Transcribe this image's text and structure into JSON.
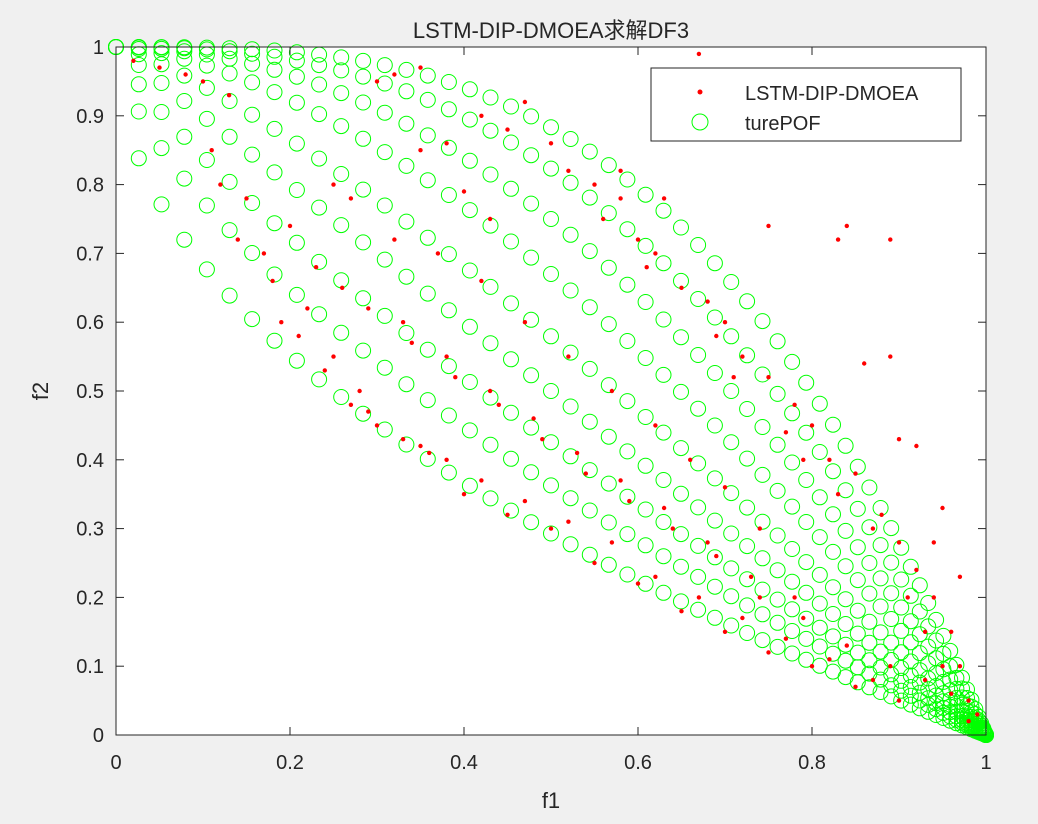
{
  "chart_data": {
    "type": "scatter",
    "title": "LSTM-DIP-DMOEA求解DF3",
    "xlabel": "f1",
    "ylabel": "f2",
    "xlim": [
      0,
      1
    ],
    "ylim": [
      0,
      1
    ],
    "xticks": [
      "0",
      "0.2",
      "0.4",
      "0.6",
      "0.8",
      "1"
    ],
    "yticks": [
      "0",
      "0.1",
      "0.2",
      "0.3",
      "0.4",
      "0.5",
      "0.6",
      "0.7",
      "0.8",
      "0.9",
      "1"
    ],
    "grid": false,
    "legend": {
      "placement": "top-right",
      "entries": [
        "LSTM-DIP-DMOEA",
        "turePOF"
      ]
    },
    "series": [
      {
        "name": "LSTM-DIP-DMOEA",
        "marker": "dot",
        "color": "#ff0000",
        "points": [
          [
            0.02,
            0.98
          ],
          [
            0.05,
            0.97
          ],
          [
            0.08,
            0.96
          ],
          [
            0.1,
            0.95
          ],
          [
            0.13,
            0.93
          ],
          [
            0.3,
            0.95
          ],
          [
            0.32,
            0.96
          ],
          [
            0.35,
            0.97
          ],
          [
            0.42,
            0.9
          ],
          [
            0.45,
            0.88
          ],
          [
            0.47,
            0.92
          ],
          [
            0.5,
            0.86
          ],
          [
            0.55,
            0.8
          ],
          [
            0.58,
            0.78
          ],
          [
            0.6,
            0.72
          ],
          [
            0.62,
            0.7
          ],
          [
            0.65,
            0.65
          ],
          [
            0.68,
            0.63
          ],
          [
            0.7,
            0.6
          ],
          [
            0.72,
            0.55
          ],
          [
            0.75,
            0.52
          ],
          [
            0.78,
            0.48
          ],
          [
            0.8,
            0.45
          ],
          [
            0.82,
            0.4
          ],
          [
            0.85,
            0.38
          ],
          [
            0.88,
            0.32
          ],
          [
            0.9,
            0.28
          ],
          [
            0.92,
            0.24
          ],
          [
            0.94,
            0.2
          ],
          [
            0.96,
            0.15
          ],
          [
            0.97,
            0.1
          ],
          [
            0.98,
            0.05
          ],
          [
            0.99,
            0.03
          ],
          [
            0.58,
            0.82
          ],
          [
            0.63,
            0.78
          ],
          [
            0.67,
            0.99
          ],
          [
            0.75,
            0.74
          ],
          [
            0.83,
            0.72
          ],
          [
            0.84,
            0.74
          ],
          [
            0.89,
            0.72
          ],
          [
            0.86,
            0.54
          ],
          [
            0.89,
            0.55
          ],
          [
            0.9,
            0.43
          ],
          [
            0.92,
            0.42
          ],
          [
            0.95,
            0.33
          ],
          [
            0.94,
            0.28
          ],
          [
            0.97,
            0.23
          ],
          [
            0.15,
            0.78
          ],
          [
            0.2,
            0.74
          ],
          [
            0.22,
            0.62
          ],
          [
            0.25,
            0.55
          ],
          [
            0.28,
            0.5
          ],
          [
            0.3,
            0.45
          ],
          [
            0.35,
            0.42
          ],
          [
            0.38,
            0.4
          ],
          [
            0.4,
            0.35
          ],
          [
            0.45,
            0.32
          ],
          [
            0.5,
            0.3
          ],
          [
            0.55,
            0.25
          ],
          [
            0.6,
            0.22
          ],
          [
            0.65,
            0.18
          ],
          [
            0.7,
            0.15
          ],
          [
            0.75,
            0.12
          ],
          [
            0.8,
            0.1
          ],
          [
            0.85,
            0.07
          ],
          [
            0.9,
            0.05
          ],
          [
            0.32,
            0.72
          ],
          [
            0.37,
            0.7
          ],
          [
            0.42,
            0.66
          ],
          [
            0.47,
            0.6
          ],
          [
            0.52,
            0.55
          ],
          [
            0.57,
            0.5
          ],
          [
            0.62,
            0.45
          ],
          [
            0.66,
            0.4
          ],
          [
            0.7,
            0.36
          ],
          [
            0.74,
            0.3
          ],
          [
            0.33,
            0.6
          ],
          [
            0.38,
            0.55
          ],
          [
            0.43,
            0.5
          ],
          [
            0.48,
            0.46
          ],
          [
            0.53,
            0.41
          ],
          [
            0.58,
            0.37
          ],
          [
            0.63,
            0.33
          ],
          [
            0.68,
            0.28
          ],
          [
            0.73,
            0.23
          ],
          [
            0.78,
            0.2
          ],
          [
            0.25,
            0.8
          ],
          [
            0.27,
            0.78
          ],
          [
            0.4,
            0.79
          ],
          [
            0.43,
            0.75
          ],
          [
            0.35,
            0.85
          ],
          [
            0.38,
            0.86
          ],
          [
            0.52,
            0.82
          ],
          [
            0.56,
            0.75
          ],
          [
            0.61,
            0.68
          ],
          [
            0.69,
            0.58
          ],
          [
            0.71,
            0.52
          ],
          [
            0.77,
            0.44
          ],
          [
            0.79,
            0.4
          ],
          [
            0.83,
            0.35
          ],
          [
            0.87,
            0.3
          ],
          [
            0.91,
            0.2
          ],
          [
            0.93,
            0.15
          ],
          [
            0.95,
            0.1
          ],
          [
            0.96,
            0.06
          ],
          [
            0.18,
            0.66
          ],
          [
            0.19,
            0.6
          ],
          [
            0.21,
            0.58
          ],
          [
            0.24,
            0.53
          ],
          [
            0.27,
            0.48
          ],
          [
            0.29,
            0.47
          ],
          [
            0.33,
            0.43
          ],
          [
            0.36,
            0.41
          ],
          [
            0.42,
            0.37
          ],
          [
            0.47,
            0.34
          ],
          [
            0.52,
            0.31
          ],
          [
            0.57,
            0.28
          ],
          [
            0.62,
            0.23
          ],
          [
            0.67,
            0.2
          ],
          [
            0.72,
            0.17
          ],
          [
            0.77,
            0.14
          ],
          [
            0.82,
            0.11
          ],
          [
            0.87,
            0.08
          ],
          [
            0.11,
            0.85
          ],
          [
            0.12,
            0.8
          ],
          [
            0.14,
            0.72
          ],
          [
            0.17,
            0.7
          ],
          [
            0.23,
            0.68
          ],
          [
            0.26,
            0.65
          ],
          [
            0.29,
            0.62
          ],
          [
            0.34,
            0.57
          ],
          [
            0.39,
            0.52
          ],
          [
            0.44,
            0.48
          ],
          [
            0.49,
            0.43
          ],
          [
            0.54,
            0.38
          ],
          [
            0.59,
            0.34
          ],
          [
            0.64,
            0.3
          ],
          [
            0.69,
            0.26
          ],
          [
            0.74,
            0.2
          ],
          [
            0.79,
            0.17
          ],
          [
            0.84,
            0.13
          ],
          [
            0.89,
            0.1
          ],
          [
            0.93,
            0.08
          ],
          [
            0.98,
            0.02
          ]
        ]
      },
      {
        "name": "turePOF",
        "marker": "circle",
        "color": "#00ff00",
        "curves": [
          {
            "exponent": 0.5,
            "samples": 60
          },
          {
            "exponent": 0.65,
            "samples": 60
          },
          {
            "exponent": 0.8,
            "samples": 60
          },
          {
            "exponent": 1.0,
            "samples": 60
          },
          {
            "exponent": 1.25,
            "samples": 60
          },
          {
            "exponent": 1.6,
            "samples": 60
          },
          {
            "exponent": 2.0,
            "samples": 60
          },
          {
            "exponent": 2.5,
            "samples": 60
          },
          {
            "exponent": 3.1,
            "samples": 60
          }
        ]
      }
    ]
  }
}
